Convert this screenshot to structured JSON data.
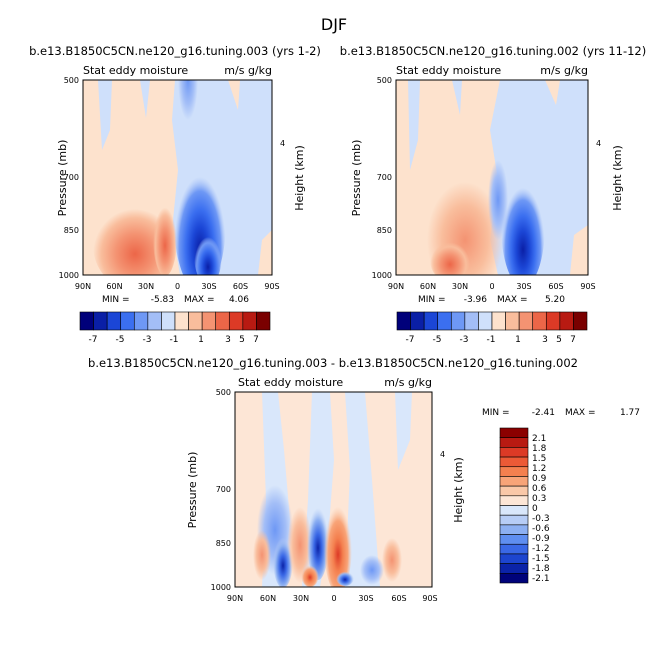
{
  "figure_title": "DJF",
  "chart_data": [
    {
      "type": "heatmap",
      "id": "upper-left",
      "title": "b.e13.B1850C5CN.ne120_g16.tuning.003 (yrs 1-2)",
      "left_label": "Stat eddy moisture",
      "right_label": "m/s g/kg",
      "ylabel": "Pressure (mb)",
      "ylabel_right": "Height (km)",
      "x_ticks": [
        "90N",
        "60N",
        "30N",
        "0",
        "30S",
        "60S",
        "90S"
      ],
      "y_ticks": [
        "500",
        "700",
        "850",
        "1000"
      ],
      "y_ticks_right": [
        "4"
      ],
      "min_label": "MIN =",
      "min_value": "-5.83",
      "max_label": "MAX =",
      "max_value": "4.06",
      "colorbar_labels": [
        "-7",
        "-5",
        "-3",
        "-1",
        "1",
        "3",
        "5",
        "7"
      ],
      "colorbar_colors": [
        "#00007a",
        "#0a1fa6",
        "#1b46d6",
        "#3b6ff0",
        "#6e98f5",
        "#a3bef7",
        "#cfe0fb",
        "#fde2cd",
        "#f9bd9c",
        "#f49372",
        "#ec6648",
        "#dc3a26",
        "#b81a12",
        "#7a0000"
      ]
    },
    {
      "type": "heatmap",
      "id": "upper-right",
      "title": "b.e13.B1850C5CN.ne120_g16.tuning.002 (yrs 11-12)",
      "left_label": "Stat eddy moisture",
      "right_label": "m/s g/kg",
      "ylabel": "Pressure (mb)",
      "ylabel_right": "Height (km)",
      "x_ticks": [
        "90N",
        "60N",
        "30N",
        "0",
        "30S",
        "60S",
        "90S"
      ],
      "y_ticks": [
        "500",
        "700",
        "850",
        "1000"
      ],
      "y_ticks_right": [
        "4"
      ],
      "min_label": "MIN =",
      "min_value": "-3.96",
      "max_label": "MAX =",
      "max_value": "5.20",
      "colorbar_labels": [
        "-7",
        "-5",
        "-3",
        "-1",
        "1",
        "3",
        "5",
        "7"
      ],
      "colorbar_colors": [
        "#00007a",
        "#0a1fa6",
        "#1b46d6",
        "#3b6ff0",
        "#6e98f5",
        "#a3bef7",
        "#cfe0fb",
        "#fde2cd",
        "#f9bd9c",
        "#f49372",
        "#ec6648",
        "#dc3a26",
        "#b81a12",
        "#7a0000"
      ]
    },
    {
      "type": "heatmap",
      "id": "difference",
      "title": "b.e13.B1850C5CN.ne120_g16.tuning.003 - b.e13.B1850C5CN.ne120_g16.tuning.002",
      "left_label": "Stat eddy moisture",
      "right_label": "m/s g/kg",
      "ylabel": "Pressure (mb)",
      "ylabel_right": "Height (km)",
      "x_ticks": [
        "90N",
        "60N",
        "30N",
        "0",
        "30S",
        "60S",
        "90S"
      ],
      "y_ticks": [
        "500",
        "700",
        "850",
        "1000"
      ],
      "y_ticks_right": [
        "4"
      ],
      "min_label": "MIN =",
      "min_value": "-2.41",
      "max_label": "MAX =",
      "max_value": "1.77",
      "colorbar_labels": [
        "2.1",
        "1.8",
        "1.5",
        "1.2",
        "0.9",
        "0.6",
        "0.3",
        "0",
        "-0.3",
        "-0.6",
        "-0.9",
        "-1.2",
        "-1.5",
        "-1.8",
        "-2.1"
      ],
      "colorbar_colors": [
        "#8b0000",
        "#b81a12",
        "#dc3a26",
        "#ec5a36",
        "#f4804f",
        "#f8a478",
        "#fac8a8",
        "#fde6d6",
        "#d9e7fb",
        "#b7cdf6",
        "#8db0f2",
        "#5f8ef0",
        "#3a68e6",
        "#1d45cf",
        "#0b23a8",
        "#00037a"
      ]
    }
  ]
}
